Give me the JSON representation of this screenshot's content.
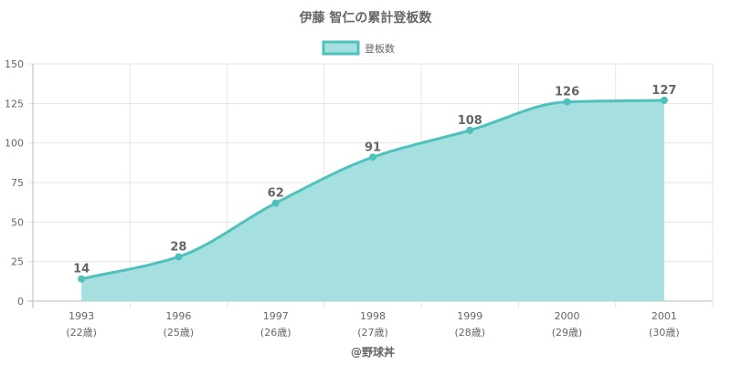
{
  "chart_data": {
    "type": "area",
    "title": "伊藤 智仁の累計登板数",
    "legend": {
      "label": "登板数",
      "position": "top"
    },
    "xlabel": "@野球丼",
    "ylabel": "",
    "categories": [
      "1993",
      "1996",
      "1997",
      "1998",
      "1999",
      "2000",
      "2001"
    ],
    "sub_labels": [
      "(22歳)",
      "(25歳)",
      "(26歳)",
      "(27歳)",
      "(28歳)",
      "(29歳)",
      "(30歳)"
    ],
    "series": [
      {
        "name": "登板数",
        "values": [
          14,
          28,
          62,
          91,
          108,
          126,
          127
        ]
      }
    ],
    "ylim": [
      0,
      150
    ],
    "yticks": [
      0,
      25,
      50,
      75,
      100,
      125,
      150
    ],
    "grid": true,
    "colors": {
      "line": "#4fc1bd",
      "fill": "#a5dfdf",
      "grid": "#e5e5e5",
      "axis": "#bbbbbb",
      "text": "#666666"
    }
  }
}
